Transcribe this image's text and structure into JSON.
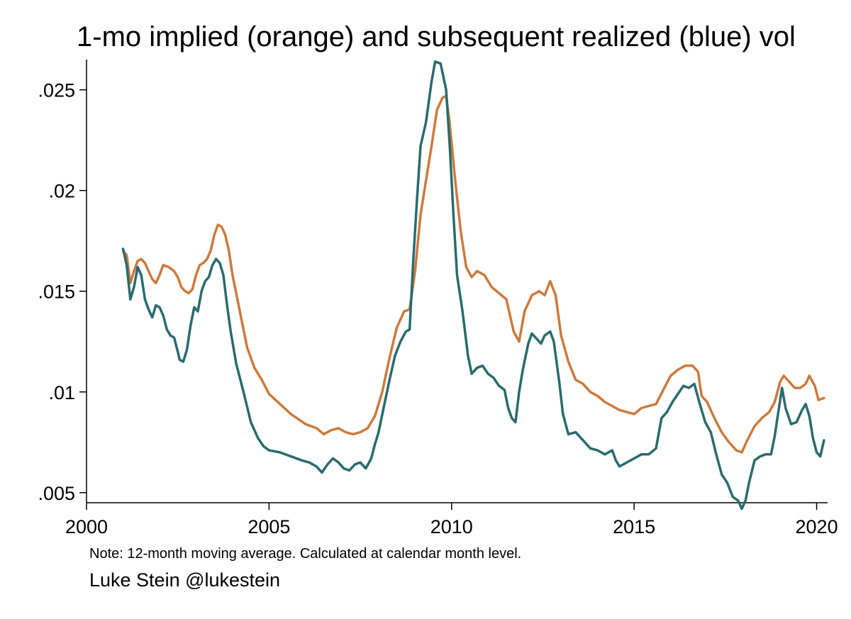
{
  "chart_data": {
    "type": "line",
    "title": "1-mo implied (orange) and subsequent realized (blue) vol",
    "note": "Note: 12-month moving average. Calculated at calendar month level.",
    "credit": "Luke Stein @lukestein",
    "xlabel": "",
    "ylabel": "",
    "xlim": [
      2000,
      2020.3
    ],
    "ylim": [
      0.0045,
      0.0265
    ],
    "x_ticks": [
      2000,
      2005,
      2010,
      2015,
      2020
    ],
    "x_tick_labels": [
      "2000",
      "2005",
      "2010",
      "2015",
      "2020"
    ],
    "y_ticks": [
      0.005,
      0.01,
      0.015,
      0.02,
      0.025
    ],
    "y_tick_labels": [
      ".005",
      ".01",
      ".015",
      ".02",
      ".025"
    ],
    "grid": false,
    "legend": "none",
    "series": [
      {
        "color": "#cc7a3e",
        "points": [
          [
            2001.0,
            0.017
          ],
          [
            2001.1,
            0.0168
          ],
          [
            2001.2,
            0.0154
          ],
          [
            2001.3,
            0.016
          ],
          [
            2001.4,
            0.0165
          ],
          [
            2001.5,
            0.0166
          ],
          [
            2001.6,
            0.0164
          ],
          [
            2001.7,
            0.016
          ],
          [
            2001.8,
            0.0156
          ],
          [
            2001.9,
            0.0154
          ],
          [
            2002.0,
            0.0158
          ],
          [
            2002.1,
            0.0163
          ],
          [
            2002.25,
            0.0162
          ],
          [
            2002.4,
            0.016
          ],
          [
            2002.5,
            0.0157
          ],
          [
            2002.6,
            0.0152
          ],
          [
            2002.7,
            0.015
          ],
          [
            2002.8,
            0.0149
          ],
          [
            2002.9,
            0.0151
          ],
          [
            2003.0,
            0.0158
          ],
          [
            2003.1,
            0.0163
          ],
          [
            2003.2,
            0.0164
          ],
          [
            2003.3,
            0.0166
          ],
          [
            2003.4,
            0.017
          ],
          [
            2003.5,
            0.0178
          ],
          [
            2003.6,
            0.0183
          ],
          [
            2003.7,
            0.0182
          ],
          [
            2003.8,
            0.0178
          ],
          [
            2003.9,
            0.017
          ],
          [
            2004.0,
            0.0158
          ],
          [
            2004.2,
            0.014
          ],
          [
            2004.4,
            0.0122
          ],
          [
            2004.6,
            0.0112
          ],
          [
            2004.8,
            0.0106
          ],
          [
            2005.0,
            0.0099
          ],
          [
            2005.3,
            0.0094
          ],
          [
            2005.6,
            0.0089
          ],
          [
            2006.0,
            0.0084
          ],
          [
            2006.3,
            0.0082
          ],
          [
            2006.5,
            0.0079
          ],
          [
            2006.7,
            0.0081
          ],
          [
            2006.9,
            0.0082
          ],
          [
            2007.1,
            0.008
          ],
          [
            2007.3,
            0.0079
          ],
          [
            2007.5,
            0.008
          ],
          [
            2007.7,
            0.0082
          ],
          [
            2007.9,
            0.0088
          ],
          [
            2008.1,
            0.01
          ],
          [
            2008.3,
            0.0117
          ],
          [
            2008.5,
            0.0132
          ],
          [
            2008.7,
            0.014
          ],
          [
            2008.85,
            0.0141
          ],
          [
            2009.0,
            0.016
          ],
          [
            2009.15,
            0.0188
          ],
          [
            2009.3,
            0.0205
          ],
          [
            2009.45,
            0.0222
          ],
          [
            2009.6,
            0.024
          ],
          [
            2009.75,
            0.0246
          ],
          [
            2009.85,
            0.0247
          ],
          [
            2009.95,
            0.0233
          ],
          [
            2010.1,
            0.0205
          ],
          [
            2010.25,
            0.018
          ],
          [
            2010.4,
            0.0162
          ],
          [
            2010.55,
            0.0157
          ],
          [
            2010.7,
            0.016
          ],
          [
            2010.9,
            0.0158
          ],
          [
            2011.1,
            0.0152
          ],
          [
            2011.3,
            0.0149
          ],
          [
            2011.5,
            0.0146
          ],
          [
            2011.7,
            0.013
          ],
          [
            2011.85,
            0.0125
          ],
          [
            2012.0,
            0.014
          ],
          [
            2012.2,
            0.0148
          ],
          [
            2012.4,
            0.015
          ],
          [
            2012.55,
            0.0148
          ],
          [
            2012.7,
            0.0155
          ],
          [
            2012.85,
            0.0148
          ],
          [
            2013.0,
            0.0128
          ],
          [
            2013.2,
            0.0115
          ],
          [
            2013.4,
            0.0106
          ],
          [
            2013.6,
            0.0104
          ],
          [
            2013.8,
            0.01
          ],
          [
            2014.0,
            0.0098
          ],
          [
            2014.2,
            0.0095
          ],
          [
            2014.4,
            0.0093
          ],
          [
            2014.6,
            0.0091
          ],
          [
            2014.8,
            0.009
          ],
          [
            2015.0,
            0.0089
          ],
          [
            2015.2,
            0.0092
          ],
          [
            2015.4,
            0.0093
          ],
          [
            2015.6,
            0.0094
          ],
          [
            2015.8,
            0.0101
          ],
          [
            2016.0,
            0.0108
          ],
          [
            2016.2,
            0.0111
          ],
          [
            2016.4,
            0.0113
          ],
          [
            2016.6,
            0.0113
          ],
          [
            2016.75,
            0.011
          ],
          [
            2016.85,
            0.0098
          ],
          [
            2017.0,
            0.0095
          ],
          [
            2017.2,
            0.0087
          ],
          [
            2017.4,
            0.008
          ],
          [
            2017.6,
            0.0075
          ],
          [
            2017.8,
            0.0071
          ],
          [
            2017.95,
            0.007
          ],
          [
            2018.1,
            0.0076
          ],
          [
            2018.3,
            0.0083
          ],
          [
            2018.5,
            0.0087
          ],
          [
            2018.7,
            0.009
          ],
          [
            2018.85,
            0.0095
          ],
          [
            2019.0,
            0.0105
          ],
          [
            2019.1,
            0.0108
          ],
          [
            2019.25,
            0.0105
          ],
          [
            2019.4,
            0.0102
          ],
          [
            2019.55,
            0.0102
          ],
          [
            2019.7,
            0.0104
          ],
          [
            2019.8,
            0.0108
          ],
          [
            2019.95,
            0.0103
          ],
          [
            2020.05,
            0.0096
          ],
          [
            2020.2,
            0.0097
          ]
        ]
      },
      {
        "color": "#2a6b6e",
        "points": [
          [
            2001.0,
            0.0171
          ],
          [
            2001.1,
            0.0163
          ],
          [
            2001.2,
            0.0146
          ],
          [
            2001.3,
            0.0152
          ],
          [
            2001.4,
            0.0162
          ],
          [
            2001.5,
            0.0158
          ],
          [
            2001.6,
            0.0146
          ],
          [
            2001.7,
            0.0141
          ],
          [
            2001.8,
            0.0137
          ],
          [
            2001.9,
            0.0143
          ],
          [
            2002.0,
            0.0142
          ],
          [
            2002.1,
            0.0138
          ],
          [
            2002.2,
            0.0131
          ],
          [
            2002.3,
            0.0128
          ],
          [
            2002.4,
            0.0127
          ],
          [
            2002.5,
            0.012
          ],
          [
            2002.55,
            0.0116
          ],
          [
            2002.65,
            0.0115
          ],
          [
            2002.75,
            0.0121
          ],
          [
            2002.85,
            0.0133
          ],
          [
            2002.95,
            0.0142
          ],
          [
            2003.05,
            0.014
          ],
          [
            2003.15,
            0.015
          ],
          [
            2003.25,
            0.0155
          ],
          [
            2003.35,
            0.0157
          ],
          [
            2003.45,
            0.0163
          ],
          [
            2003.55,
            0.0166
          ],
          [
            2003.65,
            0.0164
          ],
          [
            2003.75,
            0.0158
          ],
          [
            2003.85,
            0.0143
          ],
          [
            2003.95,
            0.013
          ],
          [
            2004.1,
            0.0114
          ],
          [
            2004.3,
            0.01
          ],
          [
            2004.5,
            0.0085
          ],
          [
            2004.7,
            0.0077
          ],
          [
            2004.85,
            0.0073
          ],
          [
            2005.0,
            0.0071
          ],
          [
            2005.3,
            0.007
          ],
          [
            2005.6,
            0.0068
          ],
          [
            2005.9,
            0.0066
          ],
          [
            2006.1,
            0.0065
          ],
          [
            2006.3,
            0.0063
          ],
          [
            2006.45,
            0.006
          ],
          [
            2006.6,
            0.0064
          ],
          [
            2006.75,
            0.0067
          ],
          [
            2006.9,
            0.0065
          ],
          [
            2007.05,
            0.0062
          ],
          [
            2007.2,
            0.0061
          ],
          [
            2007.35,
            0.0064
          ],
          [
            2007.5,
            0.0065
          ],
          [
            2007.65,
            0.0062
          ],
          [
            2007.8,
            0.0067
          ],
          [
            2007.9,
            0.0074
          ],
          [
            2008.0,
            0.008
          ],
          [
            2008.15,
            0.0093
          ],
          [
            2008.3,
            0.0106
          ],
          [
            2008.45,
            0.0118
          ],
          [
            2008.6,
            0.0125
          ],
          [
            2008.75,
            0.013
          ],
          [
            2008.85,
            0.0131
          ],
          [
            2008.95,
            0.0165
          ],
          [
            2009.05,
            0.0195
          ],
          [
            2009.15,
            0.0222
          ],
          [
            2009.3,
            0.0234
          ],
          [
            2009.45,
            0.0254
          ],
          [
            2009.55,
            0.0264
          ],
          [
            2009.7,
            0.0263
          ],
          [
            2009.85,
            0.025
          ],
          [
            2009.95,
            0.0222
          ],
          [
            2010.05,
            0.0188
          ],
          [
            2010.15,
            0.0158
          ],
          [
            2010.3,
            0.014
          ],
          [
            2010.45,
            0.0118
          ],
          [
            2010.55,
            0.0109
          ],
          [
            2010.7,
            0.0112
          ],
          [
            2010.85,
            0.0113
          ],
          [
            2011.0,
            0.0109
          ],
          [
            2011.15,
            0.0107
          ],
          [
            2011.3,
            0.0103
          ],
          [
            2011.45,
            0.0101
          ],
          [
            2011.55,
            0.0092
          ],
          [
            2011.65,
            0.0087
          ],
          [
            2011.75,
            0.0085
          ],
          [
            2011.85,
            0.01
          ],
          [
            2011.95,
            0.0111
          ],
          [
            2012.1,
            0.0124
          ],
          [
            2012.2,
            0.0129
          ],
          [
            2012.35,
            0.0126
          ],
          [
            2012.45,
            0.0124
          ],
          [
            2012.55,
            0.0128
          ],
          [
            2012.7,
            0.013
          ],
          [
            2012.8,
            0.0125
          ],
          [
            2012.95,
            0.0105
          ],
          [
            2013.05,
            0.0089
          ],
          [
            2013.2,
            0.0079
          ],
          [
            2013.4,
            0.008
          ],
          [
            2013.6,
            0.0076
          ],
          [
            2013.8,
            0.0072
          ],
          [
            2014.0,
            0.0071
          ],
          [
            2014.2,
            0.0069
          ],
          [
            2014.4,
            0.0071
          ],
          [
            2014.5,
            0.0066
          ],
          [
            2014.6,
            0.0063
          ],
          [
            2014.8,
            0.0065
          ],
          [
            2015.0,
            0.0067
          ],
          [
            2015.2,
            0.0069
          ],
          [
            2015.4,
            0.0069
          ],
          [
            2015.6,
            0.0072
          ],
          [
            2015.75,
            0.0087
          ],
          [
            2015.9,
            0.009
          ],
          [
            2016.05,
            0.0095
          ],
          [
            2016.2,
            0.0099
          ],
          [
            2016.35,
            0.0103
          ],
          [
            2016.5,
            0.0102
          ],
          [
            2016.65,
            0.0104
          ],
          [
            2016.8,
            0.0094
          ],
          [
            2016.95,
            0.0085
          ],
          [
            2017.1,
            0.008
          ],
          [
            2017.25,
            0.0069
          ],
          [
            2017.4,
            0.0059
          ],
          [
            2017.55,
            0.0055
          ],
          [
            2017.7,
            0.0048
          ],
          [
            2017.85,
            0.0046
          ],
          [
            2017.95,
            0.0042
          ],
          [
            2018.05,
            0.0046
          ],
          [
            2018.15,
            0.0055
          ],
          [
            2018.3,
            0.0066
          ],
          [
            2018.45,
            0.0068
          ],
          [
            2018.6,
            0.0069
          ],
          [
            2018.75,
            0.0069
          ],
          [
            2018.85,
            0.0078
          ],
          [
            2018.95,
            0.009
          ],
          [
            2019.05,
            0.0102
          ],
          [
            2019.15,
            0.0092
          ],
          [
            2019.3,
            0.0084
          ],
          [
            2019.45,
            0.0085
          ],
          [
            2019.6,
            0.0091
          ],
          [
            2019.7,
            0.0094
          ],
          [
            2019.8,
            0.0088
          ],
          [
            2019.9,
            0.0077
          ],
          [
            2020.0,
            0.007
          ],
          [
            2020.1,
            0.0068
          ],
          [
            2020.2,
            0.0076
          ]
        ]
      }
    ]
  }
}
